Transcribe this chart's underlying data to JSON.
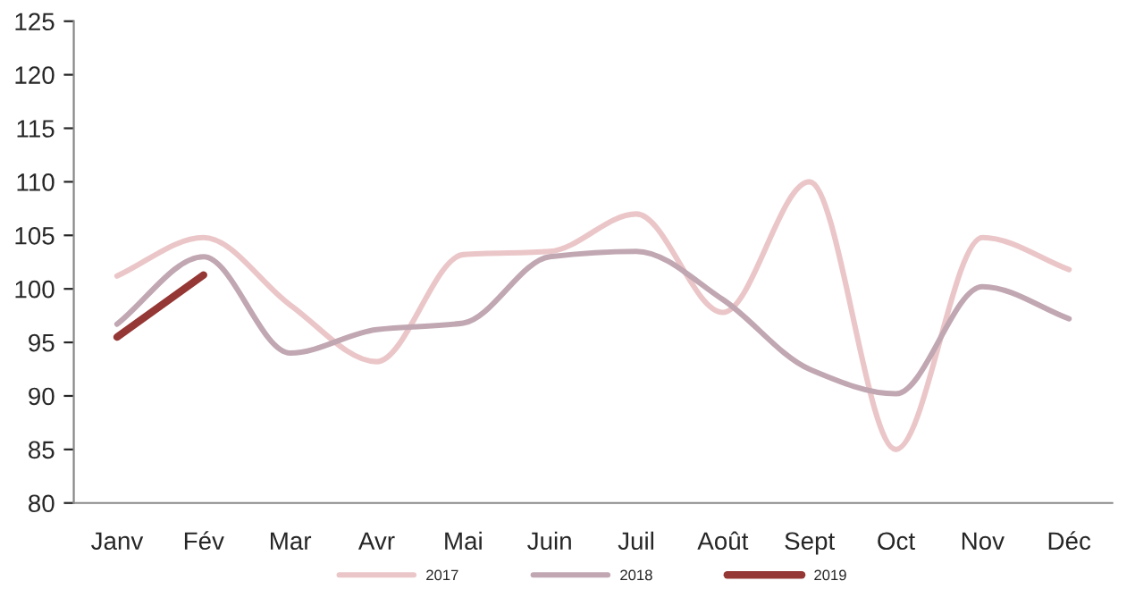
{
  "chart_data": {
    "type": "line",
    "categories": [
      "Janv",
      "Fév",
      "Mar",
      "Avr",
      "Mai",
      "Juin",
      "Juil",
      "Août",
      "Sept",
      "Oct",
      "Nov",
      "Déc"
    ],
    "series": [
      {
        "name": "2017",
        "color": "#ebc6c8",
        "values": [
          101.2,
          104.8,
          98.5,
          93.2,
          103.2,
          103.5,
          107,
          97.8,
          110,
          85,
          104.8,
          101.8
        ]
      },
      {
        "name": "2018",
        "color": "#c1a7b2",
        "values": [
          96.7,
          103,
          94,
          96.2,
          96.8,
          103,
          103.5,
          99,
          92.5,
          90.2,
          100.2,
          97.2
        ]
      },
      {
        "name": "2019",
        "color": "#953735",
        "values": [
          95.5,
          101.3,
          null,
          null,
          null,
          null,
          null,
          null,
          null,
          null,
          null,
          null
        ]
      }
    ],
    "ylim": [
      80,
      125
    ],
    "yticks": [
      80,
      85,
      90,
      95,
      100,
      105,
      110,
      115,
      120,
      125
    ],
    "legend": "bottom",
    "line_style": "solid",
    "marker": "none"
  }
}
